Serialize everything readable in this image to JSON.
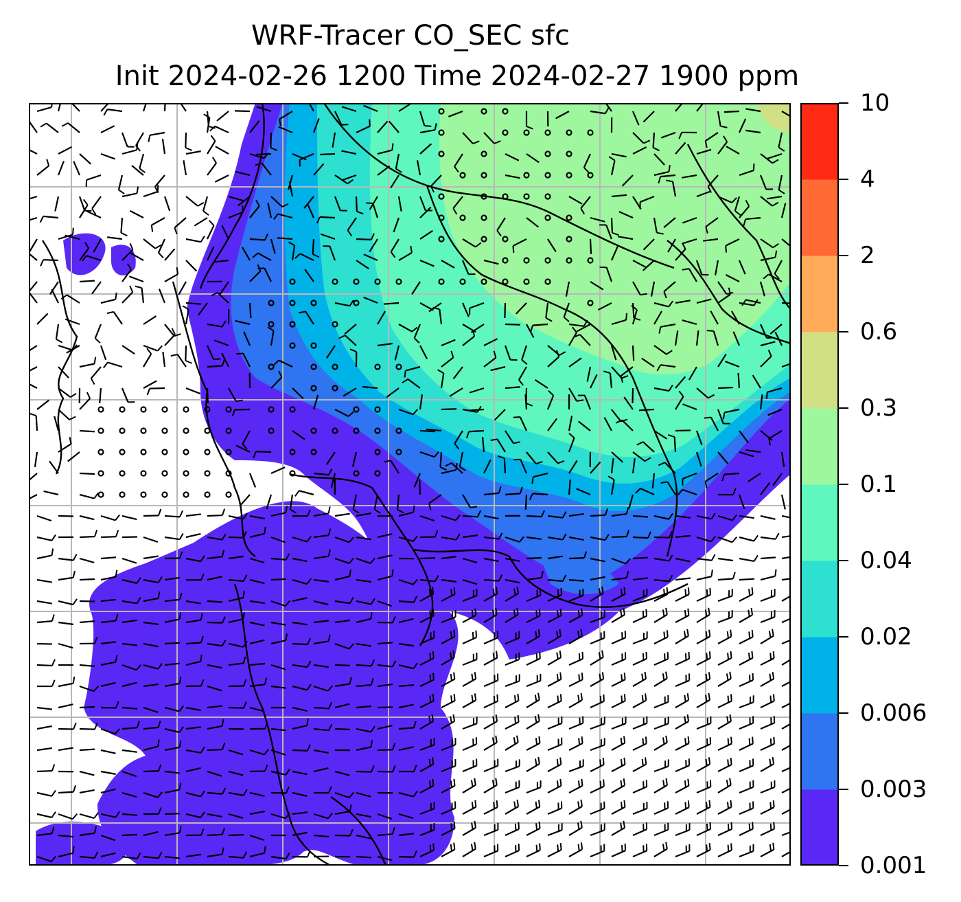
{
  "title": {
    "line1": "WRF-Tracer CO_SEC sfc",
    "line2": "Init 2024-02-26 1200 Time 2024-02-27 1900 ppm"
  },
  "colorbar": {
    "levels": [
      "0.001",
      "0.003",
      "0.006",
      "0.02",
      "0.04",
      "0.1",
      "0.3",
      "0.6",
      "2",
      "4",
      "10"
    ],
    "colors": [
      "#5a28f5",
      "#2f74f0",
      "#00b2e8",
      "#2ee0d0",
      "#5ff7be",
      "#9ef79f",
      "#d2e085",
      "#ffab5a",
      "#ff6a34",
      "#ff2a14"
    ]
  },
  "map": {
    "field": "CO_SEC surface concentration",
    "overlays": [
      "wind-barbs",
      "coastlines",
      "borders",
      "gridlines"
    ],
    "gridlines": true,
    "background": "#ffffff"
  }
}
